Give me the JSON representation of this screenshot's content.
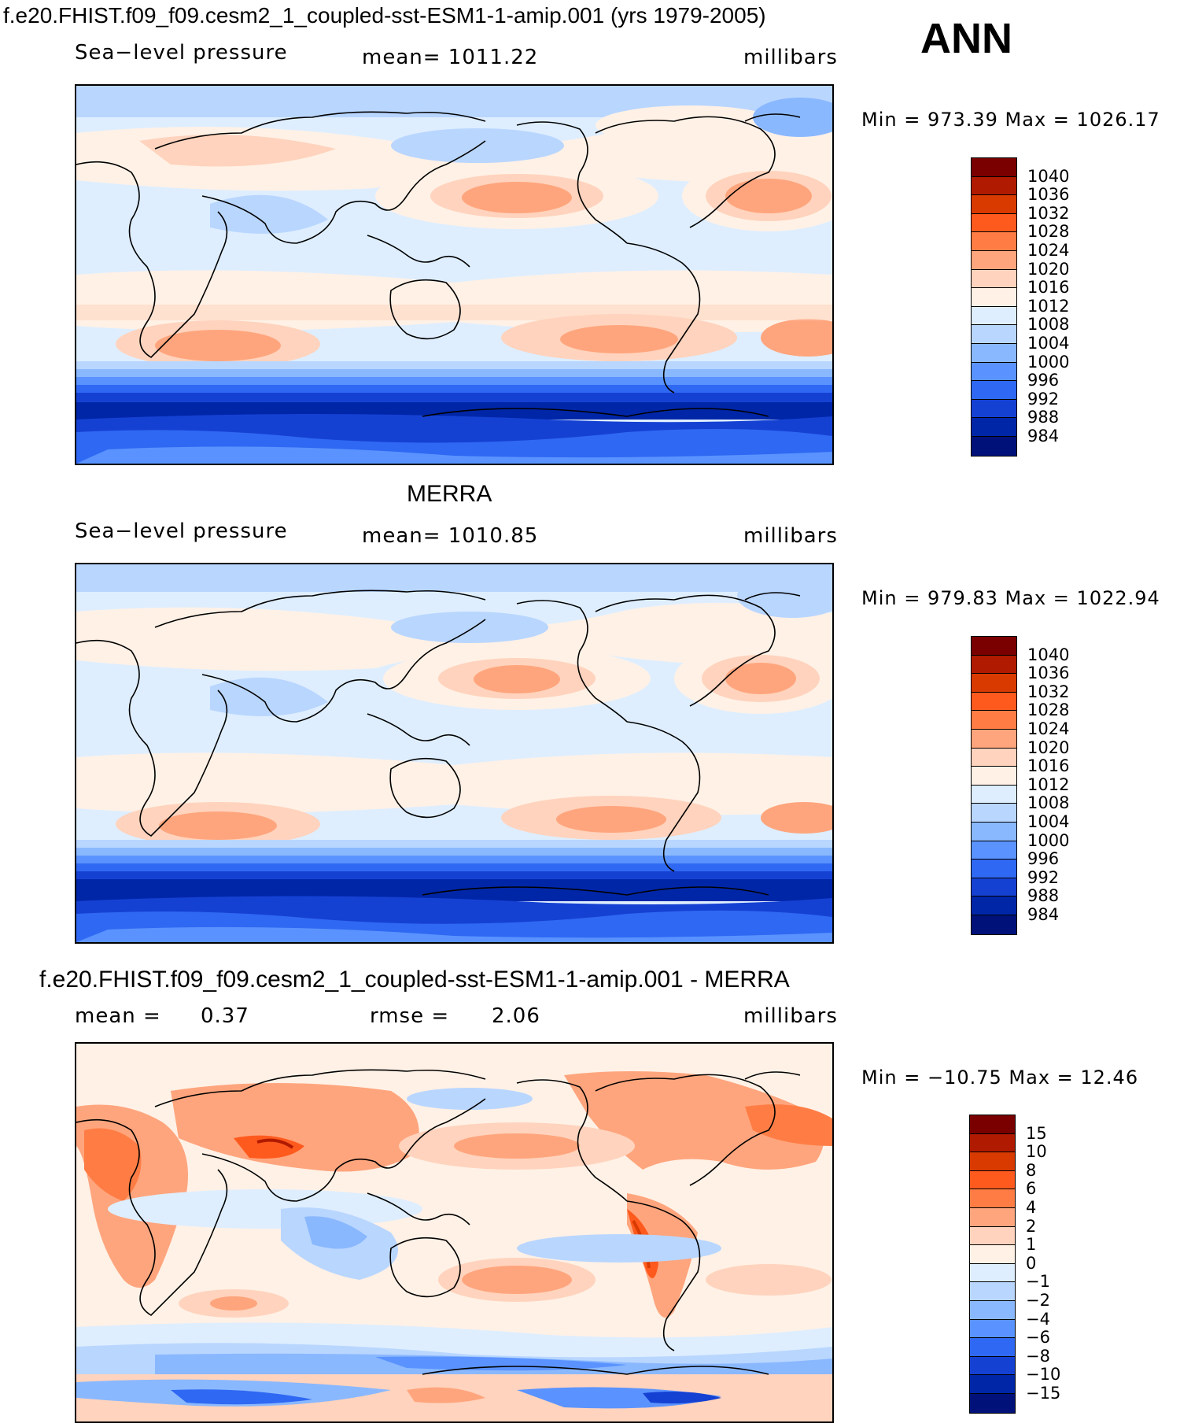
{
  "header": {
    "title": "f.e20.FHIST.f09_f09.cesm2_1_coupled-sst-ESM1-1-amip.001 (yrs 1979-2005)",
    "season": "ANN"
  },
  "panels": [
    {
      "id": "model",
      "title": "",
      "variable": "Sea−level pressure",
      "stat_text": "mean=  1011.22",
      "units": "millibars",
      "minmax": "Min  =  973.39  Max  =  1026.17",
      "colorbar": {
        "colors": [
          "#7a0000",
          "#b01a00",
          "#d93a00",
          "#ff5a1e",
          "#ff7d45",
          "#ffa57d",
          "#ffd3bd",
          "#fff1e6",
          "#deeeff",
          "#b9d6ff",
          "#8ab8ff",
          "#5a93ff",
          "#2f68f2",
          "#1541d3",
          "#0026a8",
          "#00127a"
        ],
        "labels": [
          "1040",
          "1036",
          "1032",
          "1028",
          "1024",
          "1020",
          "1016",
          "1012",
          "1008",
          "1004",
          "1000",
          "996",
          "992",
          "988",
          "984"
        ]
      }
    },
    {
      "id": "obs",
      "title": "MERRA",
      "variable": "Sea−level pressure",
      "stat_text": "mean=  1010.85",
      "units": "millibars",
      "minmax": "Min  =  979.83  Max  =  1022.94",
      "colorbar": {
        "colors": [
          "#7a0000",
          "#b01a00",
          "#d93a00",
          "#ff5a1e",
          "#ff7d45",
          "#ffa57d",
          "#ffd3bd",
          "#fff1e6",
          "#deeeff",
          "#b9d6ff",
          "#8ab8ff",
          "#5a93ff",
          "#2f68f2",
          "#1541d3",
          "#0026a8",
          "#00127a"
        ],
        "labels": [
          "1040",
          "1036",
          "1032",
          "1028",
          "1024",
          "1020",
          "1016",
          "1012",
          "1008",
          "1004",
          "1000",
          "996",
          "992",
          "988",
          "984"
        ]
      }
    },
    {
      "id": "diff",
      "title": "f.e20.FHIST.f09_f09.cesm2_1_coupled-sst-ESM1-1-amip.001 - MERRA",
      "stat_mean_label": "mean  =",
      "stat_mean_value": "0.37",
      "stat_rmse_label": "rmse  =",
      "stat_rmse_value": "2.06",
      "units": "millibars",
      "minmax": "Min  =  −10.75  Max  =     12.46",
      "colorbar": {
        "colors": [
          "#7a0000",
          "#b01a00",
          "#d93a00",
          "#ff5a1e",
          "#ff7d45",
          "#ffa57d",
          "#ffd3bd",
          "#fff1e6",
          "#deeeff",
          "#b9d6ff",
          "#8ab8ff",
          "#5a93ff",
          "#2f68f2",
          "#1541d3",
          "#0026a8",
          "#00127a"
        ],
        "labels": [
          "15",
          "10",
          "8",
          "6",
          "4",
          "2",
          "1",
          "0",
          "−1",
          "−2",
          "−4",
          "−6",
          "−8",
          "−10",
          "−15"
        ]
      }
    }
  ]
}
